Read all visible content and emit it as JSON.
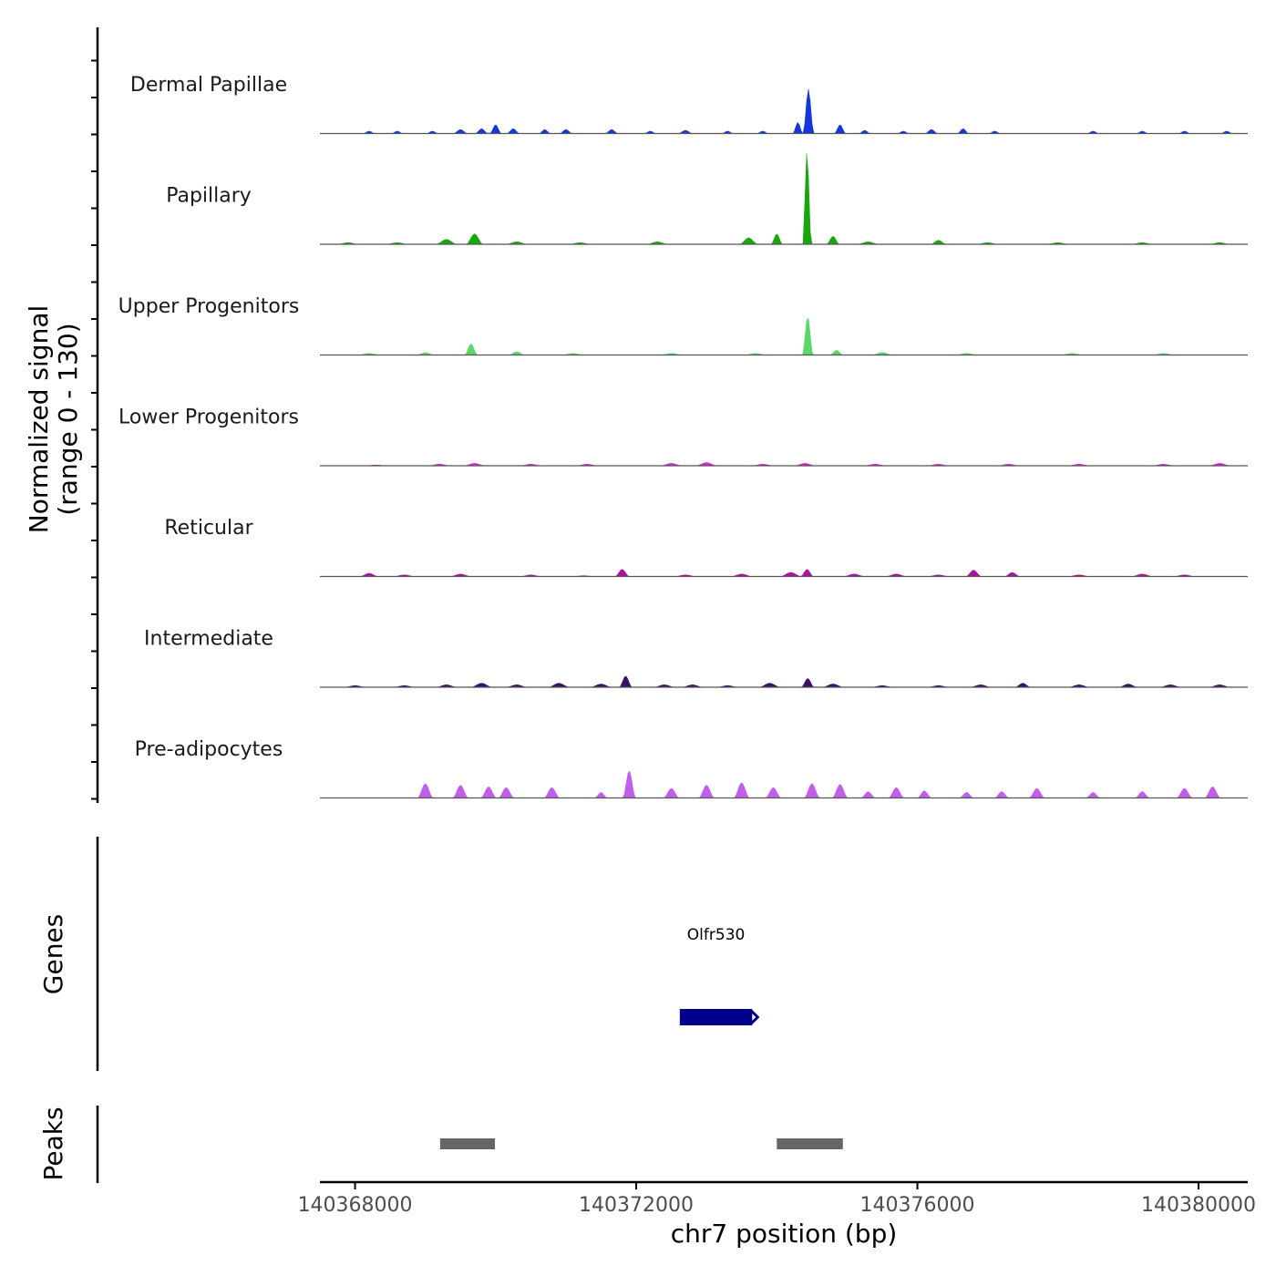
{
  "chart_data": {
    "type": "area",
    "title": "",
    "ylabel": "Normalized signal",
    "ylabel_range": "(range 0 - 130)",
    "xlabel": "chr7 position (bp)",
    "xlim": [
      140367500,
      140380700
    ],
    "ylim": [
      0,
      130
    ],
    "x_ticks": [
      140368000,
      140372000,
      140376000,
      140380000
    ],
    "x_tick_labels": [
      "140368000",
      "140372000",
      "140376000",
      "140380000"
    ],
    "series": [
      {
        "name": "Dermal Papillae",
        "color": "#1238DB",
        "peaks": [
          {
            "x": 140368200,
            "h": 3,
            "w": 80
          },
          {
            "x": 140368600,
            "h": 3,
            "w": 80
          },
          {
            "x": 140369100,
            "h": 3,
            "w": 80
          },
          {
            "x": 140369500,
            "h": 5,
            "w": 100
          },
          {
            "x": 140369800,
            "h": 6,
            "w": 90
          },
          {
            "x": 140370000,
            "h": 11,
            "w": 80
          },
          {
            "x": 140370250,
            "h": 6,
            "w": 90
          },
          {
            "x": 140370700,
            "h": 5,
            "w": 80
          },
          {
            "x": 140371000,
            "h": 5,
            "w": 90
          },
          {
            "x": 140371650,
            "h": 5,
            "w": 90
          },
          {
            "x": 140372200,
            "h": 3,
            "w": 80
          },
          {
            "x": 140372700,
            "h": 4,
            "w": 100
          },
          {
            "x": 140373300,
            "h": 3,
            "w": 80
          },
          {
            "x": 140373800,
            "h": 3,
            "w": 80
          },
          {
            "x": 140374450,
            "h": 55,
            "w": 75
          },
          {
            "x": 140374300,
            "h": 14,
            "w": 70
          },
          {
            "x": 140374900,
            "h": 11,
            "w": 80
          },
          {
            "x": 140375250,
            "h": 4,
            "w": 80
          },
          {
            "x": 140375800,
            "h": 3,
            "w": 80
          },
          {
            "x": 140376200,
            "h": 5,
            "w": 90
          },
          {
            "x": 140376650,
            "h": 6,
            "w": 80
          },
          {
            "x": 140377100,
            "h": 3,
            "w": 80
          },
          {
            "x": 140378500,
            "h": 3,
            "w": 80
          },
          {
            "x": 140379200,
            "h": 3,
            "w": 80
          },
          {
            "x": 140379800,
            "h": 3,
            "w": 80
          },
          {
            "x": 140380400,
            "h": 3,
            "w": 80
          }
        ]
      },
      {
        "name": "Papillary",
        "color": "#17A60B",
        "peaks": [
          {
            "x": 140367900,
            "h": 2,
            "w": 150
          },
          {
            "x": 140368600,
            "h": 2,
            "w": 150
          },
          {
            "x": 140369300,
            "h": 6,
            "w": 150
          },
          {
            "x": 140369700,
            "h": 13,
            "w": 120
          },
          {
            "x": 140370300,
            "h": 3,
            "w": 150
          },
          {
            "x": 140371200,
            "h": 2,
            "w": 150
          },
          {
            "x": 140372300,
            "h": 3,
            "w": 150
          },
          {
            "x": 140373600,
            "h": 8,
            "w": 130
          },
          {
            "x": 140374000,
            "h": 13,
            "w": 80
          },
          {
            "x": 140374430,
            "h": 115,
            "w": 60
          },
          {
            "x": 140374800,
            "h": 10,
            "w": 90
          },
          {
            "x": 140375300,
            "h": 3,
            "w": 150
          },
          {
            "x": 140376300,
            "h": 5,
            "w": 110
          },
          {
            "x": 140377000,
            "h": 2,
            "w": 150
          },
          {
            "x": 140378000,
            "h": 2,
            "w": 150
          },
          {
            "x": 140379200,
            "h": 2,
            "w": 150
          },
          {
            "x": 140380300,
            "h": 2,
            "w": 150
          }
        ]
      },
      {
        "name": "Upper Progenitors",
        "color": "#5AD66A",
        "peaks": [
          {
            "x": 140368200,
            "h": 2,
            "w": 150
          },
          {
            "x": 140369000,
            "h": 3,
            "w": 120
          },
          {
            "x": 140369650,
            "h": 14,
            "w": 90
          },
          {
            "x": 140370300,
            "h": 4,
            "w": 110
          },
          {
            "x": 140371100,
            "h": 2,
            "w": 150
          },
          {
            "x": 140372500,
            "h": 2,
            "w": 150
          },
          {
            "x": 140373700,
            "h": 2,
            "w": 150
          },
          {
            "x": 140374440,
            "h": 48,
            "w": 75
          },
          {
            "x": 140374850,
            "h": 6,
            "w": 90
          },
          {
            "x": 140375500,
            "h": 3,
            "w": 150
          },
          {
            "x": 140376700,
            "h": 2,
            "w": 150
          },
          {
            "x": 140378200,
            "h": 2,
            "w": 150
          },
          {
            "x": 140379500,
            "h": 2,
            "w": 150
          }
        ]
      },
      {
        "name": "Lower Progenitors",
        "color": "#D02AC7",
        "peaks": [
          {
            "x": 140368300,
            "h": 1,
            "w": 150
          },
          {
            "x": 140369200,
            "h": 2,
            "w": 150
          },
          {
            "x": 140369700,
            "h": 3,
            "w": 150
          },
          {
            "x": 140370500,
            "h": 2,
            "w": 150
          },
          {
            "x": 140371300,
            "h": 2,
            "w": 150
          },
          {
            "x": 140372500,
            "h": 3,
            "w": 150
          },
          {
            "x": 140373000,
            "h": 4,
            "w": 150
          },
          {
            "x": 140373800,
            "h": 2,
            "w": 150
          },
          {
            "x": 140374400,
            "h": 3,
            "w": 150
          },
          {
            "x": 140375400,
            "h": 2,
            "w": 150
          },
          {
            "x": 140376300,
            "h": 2,
            "w": 150
          },
          {
            "x": 140377300,
            "h": 2,
            "w": 150
          },
          {
            "x": 140378300,
            "h": 2,
            "w": 150
          },
          {
            "x": 140379500,
            "h": 2,
            "w": 150
          },
          {
            "x": 140380300,
            "h": 3,
            "w": 150
          }
        ]
      },
      {
        "name": "Reticular",
        "color": "#A8159F",
        "peaks": [
          {
            "x": 140368200,
            "h": 4,
            "w": 130
          },
          {
            "x": 140368700,
            "h": 2,
            "w": 150
          },
          {
            "x": 140369500,
            "h": 3,
            "w": 150
          },
          {
            "x": 140370500,
            "h": 2,
            "w": 150
          },
          {
            "x": 140371250,
            "h": 1,
            "w": 150
          },
          {
            "x": 140371800,
            "h": 9,
            "w": 100
          },
          {
            "x": 140372700,
            "h": 2,
            "w": 150
          },
          {
            "x": 140373500,
            "h": 3,
            "w": 150
          },
          {
            "x": 140374200,
            "h": 5,
            "w": 150
          },
          {
            "x": 140374430,
            "h": 9,
            "w": 90
          },
          {
            "x": 140375100,
            "h": 3,
            "w": 150
          },
          {
            "x": 140375700,
            "h": 3,
            "w": 150
          },
          {
            "x": 140376300,
            "h": 2,
            "w": 150
          },
          {
            "x": 140376800,
            "h": 8,
            "w": 110
          },
          {
            "x": 140377350,
            "h": 5,
            "w": 110
          },
          {
            "x": 140378300,
            "h": 2,
            "w": 150
          },
          {
            "x": 140379200,
            "h": 3,
            "w": 150
          },
          {
            "x": 140379800,
            "h": 2,
            "w": 150
          }
        ]
      },
      {
        "name": "Intermediate",
        "color": "#3A1166",
        "peaks": [
          {
            "x": 140368000,
            "h": 2,
            "w": 150
          },
          {
            "x": 140368700,
            "h": 2,
            "w": 150
          },
          {
            "x": 140369300,
            "h": 3,
            "w": 150
          },
          {
            "x": 140369800,
            "h": 5,
            "w": 150
          },
          {
            "x": 140370300,
            "h": 3,
            "w": 150
          },
          {
            "x": 140370900,
            "h": 5,
            "w": 150
          },
          {
            "x": 140371500,
            "h": 4,
            "w": 150
          },
          {
            "x": 140371850,
            "h": 14,
            "w": 90
          },
          {
            "x": 140372400,
            "h": 3,
            "w": 150
          },
          {
            "x": 140372800,
            "h": 3,
            "w": 150
          },
          {
            "x": 140373300,
            "h": 2,
            "w": 150
          },
          {
            "x": 140373900,
            "h": 5,
            "w": 150
          },
          {
            "x": 140374440,
            "h": 11,
            "w": 90
          },
          {
            "x": 140374800,
            "h": 4,
            "w": 150
          },
          {
            "x": 140375500,
            "h": 2,
            "w": 150
          },
          {
            "x": 140376300,
            "h": 2,
            "w": 150
          },
          {
            "x": 140376900,
            "h": 3,
            "w": 150
          },
          {
            "x": 140377500,
            "h": 5,
            "w": 110
          },
          {
            "x": 140378300,
            "h": 3,
            "w": 150
          },
          {
            "x": 140379000,
            "h": 4,
            "w": 130
          },
          {
            "x": 140379600,
            "h": 3,
            "w": 150
          },
          {
            "x": 140380300,
            "h": 3,
            "w": 150
          }
        ]
      },
      {
        "name": "Pre-adipocytes",
        "color": "#C15FEC",
        "peaks": [
          {
            "x": 140369000,
            "h": 18,
            "w": 110
          },
          {
            "x": 140369500,
            "h": 16,
            "w": 110
          },
          {
            "x": 140369900,
            "h": 14,
            "w": 110
          },
          {
            "x": 140370150,
            "h": 13,
            "w": 110
          },
          {
            "x": 140370800,
            "h": 13,
            "w": 110
          },
          {
            "x": 140371500,
            "h": 7,
            "w": 90
          },
          {
            "x": 140371900,
            "h": 34,
            "w": 90
          },
          {
            "x": 140372500,
            "h": 12,
            "w": 110
          },
          {
            "x": 140373000,
            "h": 16,
            "w": 110
          },
          {
            "x": 140373500,
            "h": 19,
            "w": 110
          },
          {
            "x": 140373950,
            "h": 13,
            "w": 110
          },
          {
            "x": 140374500,
            "h": 18,
            "w": 110
          },
          {
            "x": 140374900,
            "h": 17,
            "w": 110
          },
          {
            "x": 140375300,
            "h": 8,
            "w": 100
          },
          {
            "x": 140375700,
            "h": 13,
            "w": 110
          },
          {
            "x": 140376100,
            "h": 9,
            "w": 100
          },
          {
            "x": 140376700,
            "h": 7,
            "w": 100
          },
          {
            "x": 140377200,
            "h": 8,
            "w": 100
          },
          {
            "x": 140377700,
            "h": 12,
            "w": 110
          },
          {
            "x": 140378500,
            "h": 7,
            "w": 100
          },
          {
            "x": 140379200,
            "h": 8,
            "w": 100
          },
          {
            "x": 140379800,
            "h": 12,
            "w": 110
          },
          {
            "x": 140380200,
            "h": 14,
            "w": 110
          }
        ]
      }
    ],
    "genes": {
      "label": "Genes",
      "items": [
        {
          "name": "Olfr530",
          "start": 140372620,
          "end": 140373650,
          "color": "#00008B"
        }
      ]
    },
    "peaks_track": {
      "label": "Peaks",
      "color": "#666666",
      "regions": [
        {
          "start": 140369210,
          "end": 140369990
        },
        {
          "start": 140374000,
          "end": 140374940
        }
      ]
    }
  }
}
